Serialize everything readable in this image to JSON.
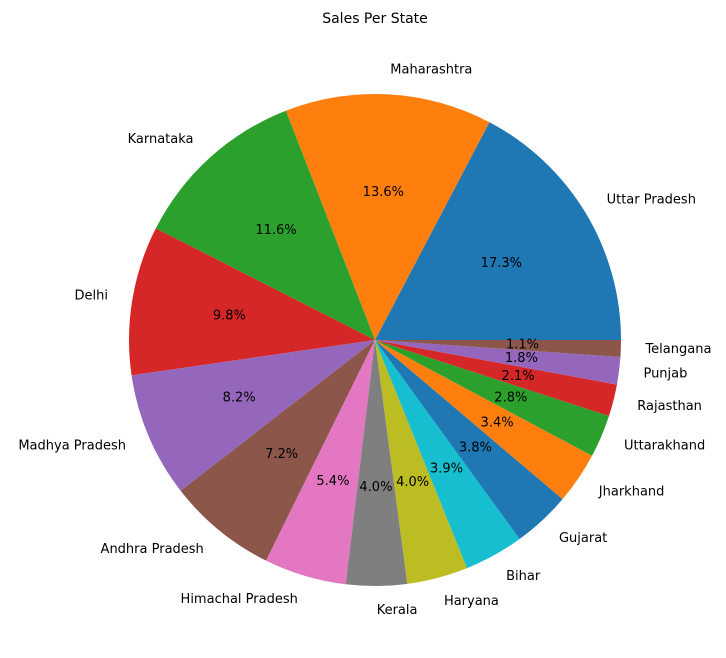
{
  "chart_data": {
    "type": "pie",
    "title": "Sales Per State",
    "start_angle_deg": 0,
    "direction": "counterclockwise",
    "slices": [
      {
        "label": "Uttar Pradesh",
        "value": 17.3,
        "pct_label": "17.3%",
        "color": "#1f77b4"
      },
      {
        "label": "Maharashtra",
        "value": 13.6,
        "pct_label": "13.6%",
        "color": "#ff7f0e"
      },
      {
        "label": "Karnataka",
        "value": 11.6,
        "pct_label": "11.6%",
        "color": "#2ca02c"
      },
      {
        "label": "Delhi",
        "value": 9.8,
        "pct_label": "9.8%",
        "color": "#d62728"
      },
      {
        "label": "Madhya Pradesh",
        "value": 8.2,
        "pct_label": "8.2%",
        "color": "#9467bd"
      },
      {
        "label": "Andhra Pradesh",
        "value": 7.2,
        "pct_label": "7.2%",
        "color": "#8c564b"
      },
      {
        "label": "Himachal Pradesh",
        "value": 5.4,
        "pct_label": "5.4%",
        "color": "#e377c2"
      },
      {
        "label": "Kerala",
        "value": 4.0,
        "pct_label": "4.0%",
        "color": "#7f7f7f"
      },
      {
        "label": "Haryana",
        "value": 4.0,
        "pct_label": "4.0%",
        "color": "#bcbd22"
      },
      {
        "label": "Bihar",
        "value": 3.9,
        "pct_label": "3.9%",
        "color": "#17becf"
      },
      {
        "label": "Gujarat",
        "value": 3.8,
        "pct_label": "3.8%",
        "color": "#1f77b4"
      },
      {
        "label": "Jharkhand",
        "value": 3.4,
        "pct_label": "3.4%",
        "color": "#ff7f0e"
      },
      {
        "label": "Uttarakhand",
        "value": 2.8,
        "pct_label": "2.8%",
        "color": "#2ca02c"
      },
      {
        "label": "Rajasthan",
        "value": 2.1,
        "pct_label": "2.1%",
        "color": "#d62728"
      },
      {
        "label": "Punjab",
        "value": 1.8,
        "pct_label": "1.8%",
        "color": "#9467bd"
      },
      {
        "label": "Telangana",
        "value": 1.1,
        "pct_label": "1.1%",
        "color": "#8c564b"
      }
    ]
  }
}
